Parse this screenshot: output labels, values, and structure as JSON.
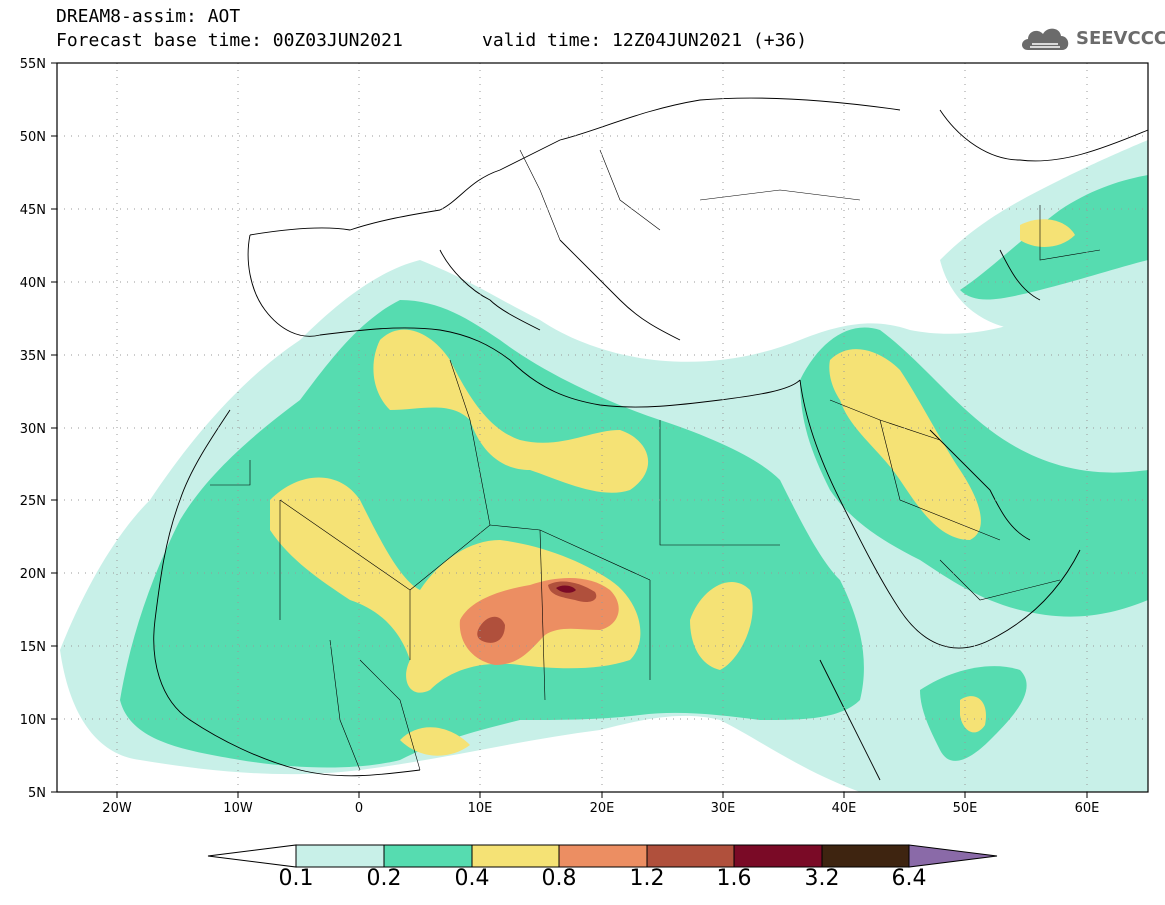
{
  "header": {
    "title_line1": "DREAM8-assim: AOT",
    "title_line2": "Forecast base time: 00Z03JUN2021",
    "valid_time": "valid time: 12Z04JUN2021 (+36)"
  },
  "logo": {
    "text": "SEEVCCC",
    "icon": "cloud-logo-icon"
  },
  "map": {
    "lat_labels": [
      "55N",
      "50N",
      "45N",
      "40N",
      "35N",
      "30N",
      "25N",
      "20N",
      "15N",
      "10N",
      "5N"
    ],
    "lon_labels": [
      "20W",
      "10W",
      "0",
      "10E",
      "20E",
      "30E",
      "40E",
      "50E",
      "60E"
    ],
    "lat_range": [
      5,
      55
    ],
    "lon_range": [
      -25,
      65
    ],
    "grid": "dotted",
    "field": "aerosol optical thickness"
  },
  "colorbar": {
    "labels": [
      "0.1",
      "0.2",
      "0.4",
      "0.8",
      "1.2",
      "1.6",
      "3.2",
      "6.4"
    ],
    "colors": [
      "#ffffff",
      "#c8f0e8",
      "#56dcb0",
      "#f5e275",
      "#ec8e62",
      "#b0503c",
      "#7a0a26",
      "#3e2410",
      "#8a6aa8"
    ]
  },
  "palette": {
    "c01": "#c8f0e8",
    "c02": "#56dcb0",
    "c04": "#f5e275",
    "c08": "#ec8e62",
    "c12": "#b0503c",
    "c16": "#7a0a26"
  }
}
